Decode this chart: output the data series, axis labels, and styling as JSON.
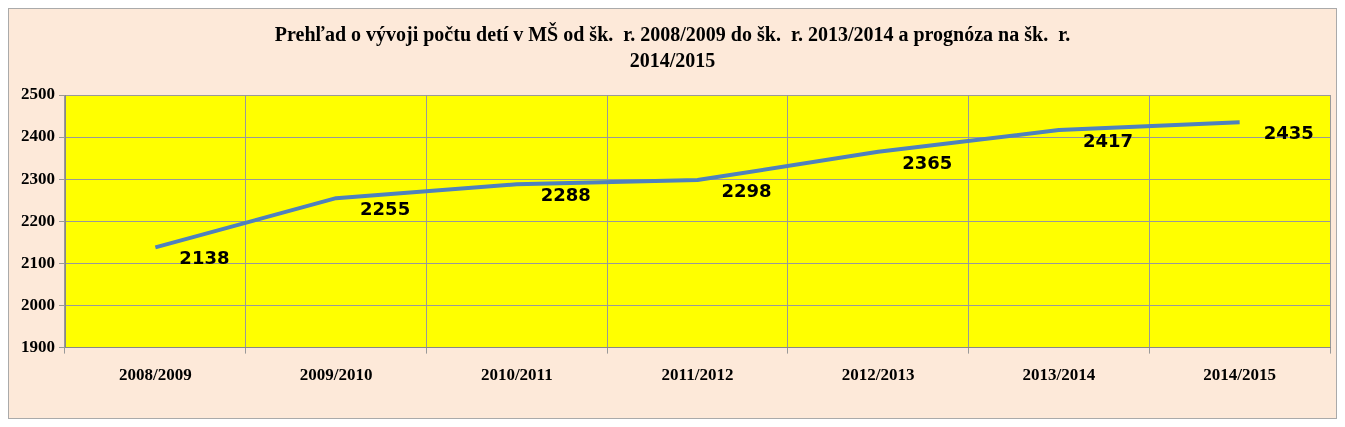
{
  "chart_data": {
    "type": "line",
    "title": "Prehľad o vývoji počtu detí v MŠ od šk.  r. 2008/2009 do šk.  r. 2013/2014 a prognóza na šk.  r.  2014/2015",
    "categories": [
      "2008/2009",
      "2009/2010",
      "2010/2011",
      "2011/2012",
      "2012/2013",
      "2013/2014",
      "2014/2015"
    ],
    "series": [
      {
        "color": "#4f81bd",
        "values": [
          2138,
          2255,
          2288,
          2298,
          2365,
          2417,
          2435
        ]
      }
    ],
    "ylim": [
      1900,
      2500
    ],
    "yticks": [
      1900,
      2000,
      2100,
      2200,
      2300,
      2400,
      2500
    ],
    "grid": true,
    "legend": false,
    "marker": "none",
    "line_style": "solid",
    "data_labels": true
  }
}
